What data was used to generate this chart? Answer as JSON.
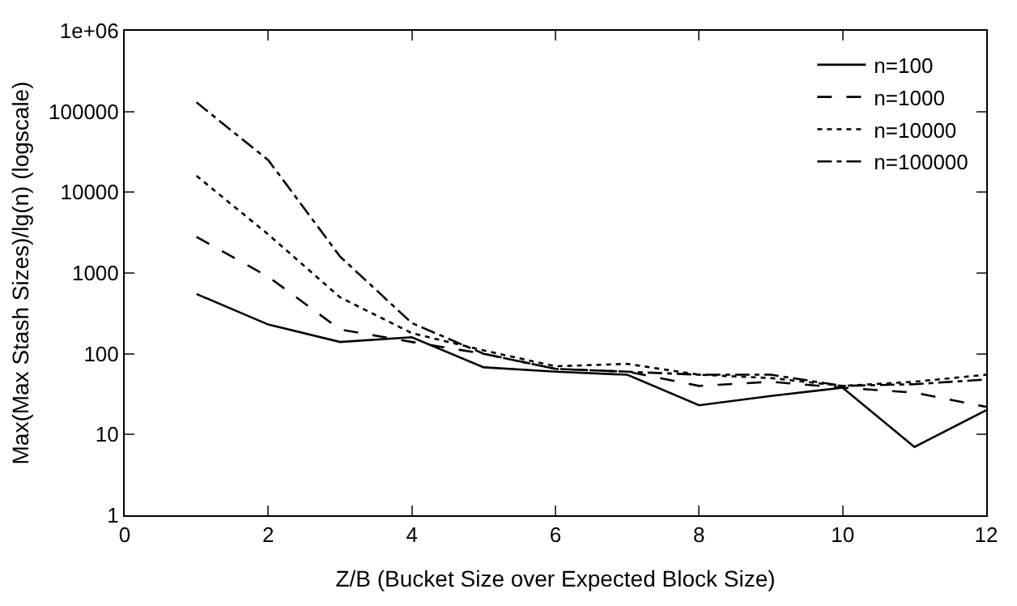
{
  "chart_data": {
    "type": "line",
    "xlabel": "Z/B (Bucket Size over Expected Block Size)",
    "ylabel": "Max(Max Stash Sizes)/lg(n) (logscale)",
    "x": [
      1,
      2,
      3,
      4,
      5,
      6,
      7,
      8,
      9,
      10,
      11,
      12
    ],
    "series": [
      {
        "name": "n=100",
        "color": "#000000",
        "line_style": "solid",
        "values": [
          550,
          230,
          140,
          160,
          68,
          60,
          55,
          23,
          30,
          38,
          7,
          20
        ]
      },
      {
        "name": "n=1000",
        "color": "#000000",
        "line_style": "dashed",
        "values": [
          2800,
          900,
          200,
          140,
          100,
          65,
          60,
          40,
          45,
          38,
          33,
          22
        ]
      },
      {
        "name": "n=10000",
        "color": "#000000",
        "line_style": "dotted",
        "values": [
          16000,
          3000,
          500,
          180,
          110,
          70,
          75,
          55,
          50,
          40,
          45,
          55
        ]
      },
      {
        "name": "n=100000",
        "color": "#000000",
        "line_style": "dashdot",
        "values": [
          130000,
          25000,
          1600,
          240,
          100,
          65,
          60,
          55,
          55,
          40,
          42,
          48
        ]
      }
    ],
    "log": "y",
    "xlim": [
      0,
      12
    ],
    "xticks": [
      0,
      2,
      4,
      6,
      8,
      10,
      12
    ],
    "ylim": [
      1,
      1000000
    ],
    "yticks": [
      1,
      10,
      100,
      1000,
      10000,
      100000,
      {
        "value": 1000000,
        "label": "1e+06"
      }
    ],
    "legend": "top right",
    "marker": "none"
  }
}
